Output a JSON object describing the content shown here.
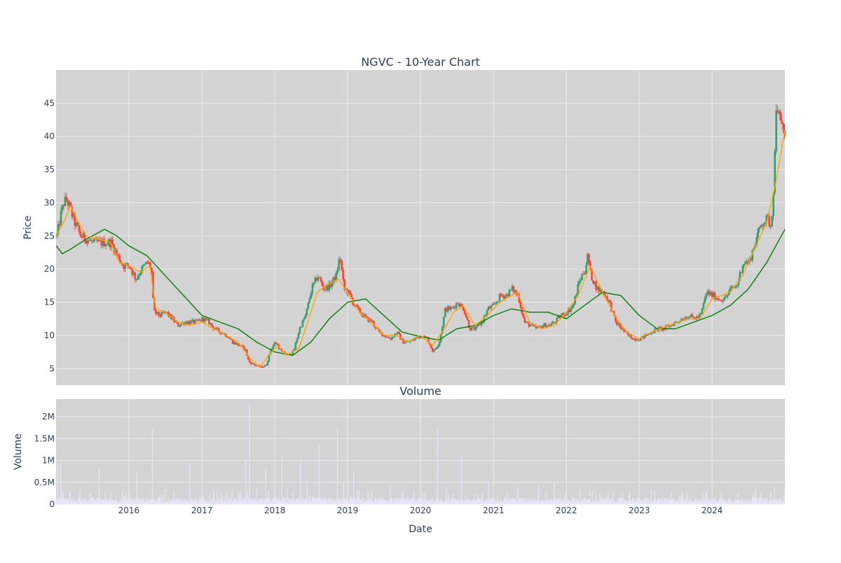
{
  "chart_data": [
    {
      "type": "candlestick",
      "title": "NGVC - 10-Year Chart",
      "ylabel": "Price",
      "xlim": [
        "2015-01-01",
        "2024-12-31"
      ],
      "ylim": [
        2.5,
        50
      ],
      "yticks": [
        5,
        10,
        15,
        20,
        25,
        30,
        35,
        40,
        45
      ],
      "grid": true,
      "colors": {
        "increasing": "#3d9970",
        "decreasing": "#ff4136",
        "sma50": "#ffa500",
        "sma200": "#008000",
        "plot_bg": "#d3d3d3",
        "grid": "#ececec"
      },
      "price_path": [
        [
          "2015-01-02",
          25
        ],
        [
          "2015-01-20",
          28
        ],
        [
          "2015-02-05",
          30
        ],
        [
          "2015-02-20",
          30.5
        ],
        [
          "2015-03-10",
          29
        ],
        [
          "2015-04-01",
          27
        ],
        [
          "2015-05-01",
          25
        ],
        [
          "2015-06-01",
          24.5
        ],
        [
          "2015-07-01",
          24
        ],
        [
          "2015-08-01",
          24
        ],
        [
          "2015-09-01",
          24
        ],
        [
          "2015-10-01",
          24
        ],
        [
          "2015-11-01",
          22
        ],
        [
          "2015-12-01",
          20.5
        ],
        [
          "2016-01-01",
          20.5
        ],
        [
          "2016-02-01",
          18.5
        ],
        [
          "2016-03-01",
          20
        ],
        [
          "2016-04-01",
          21
        ],
        [
          "2016-04-20",
          20
        ],
        [
          "2016-05-01",
          13.5
        ],
        [
          "2016-06-01",
          13
        ],
        [
          "2016-07-01",
          13.5
        ],
        [
          "2016-08-01",
          12.5
        ],
        [
          "2016-09-01",
          11.5
        ],
        [
          "2016-10-01",
          12
        ],
        [
          "2016-11-01",
          12
        ],
        [
          "2016-12-01",
          12
        ],
        [
          "2017-01-01",
          12.5
        ],
        [
          "2017-02-01",
          12
        ],
        [
          "2017-03-01",
          11
        ],
        [
          "2017-04-01",
          10.5
        ],
        [
          "2017-05-01",
          10
        ],
        [
          "2017-06-01",
          9
        ],
        [
          "2017-07-01",
          8.5
        ],
        [
          "2017-08-01",
          8
        ],
        [
          "2017-08-20",
          6
        ],
        [
          "2017-09-20",
          5.5
        ],
        [
          "2017-10-20",
          5.2
        ],
        [
          "2017-11-15",
          5.5
        ],
        [
          "2017-12-10",
          8
        ],
        [
          "2018-01-01",
          9
        ],
        [
          "2018-02-01",
          7.5
        ],
        [
          "2018-03-01",
          7
        ],
        [
          "2018-04-01",
          7.5
        ],
        [
          "2018-05-01",
          11
        ],
        [
          "2018-06-01",
          13
        ],
        [
          "2018-07-01",
          17
        ],
        [
          "2018-08-01",
          19
        ],
        [
          "2018-09-01",
          17
        ],
        [
          "2018-10-01",
          17.5
        ],
        [
          "2018-11-01",
          19
        ],
        [
          "2018-11-20",
          22
        ],
        [
          "2018-12-10",
          17
        ],
        [
          "2019-01-01",
          16.5
        ],
        [
          "2019-02-01",
          14.5
        ],
        [
          "2019-03-01",
          13.5
        ],
        [
          "2019-04-01",
          12.5
        ],
        [
          "2019-05-01",
          12
        ],
        [
          "2019-06-01",
          10.5
        ],
        [
          "2019-07-01",
          10
        ],
        [
          "2019-08-01",
          9.5
        ],
        [
          "2019-09-01",
          10.5
        ],
        [
          "2019-10-01",
          9
        ],
        [
          "2019-11-01",
          9
        ],
        [
          "2019-12-01",
          9.5
        ],
        [
          "2020-01-01",
          10
        ],
        [
          "2020-02-01",
          9.5
        ],
        [
          "2020-03-01",
          7.5
        ],
        [
          "2020-04-01",
          9
        ],
        [
          "2020-05-01",
          14
        ],
        [
          "2020-06-01",
          14
        ],
        [
          "2020-07-01",
          15
        ],
        [
          "2020-08-01",
          14
        ],
        [
          "2020-09-01",
          11
        ],
        [
          "2020-10-01",
          11
        ],
        [
          "2020-11-01",
          12
        ],
        [
          "2020-12-01",
          14
        ],
        [
          "2021-01-01",
          14.5
        ],
        [
          "2021-02-01",
          16
        ],
        [
          "2021-03-01",
          16
        ],
        [
          "2021-04-01",
          17
        ],
        [
          "2021-05-01",
          16
        ],
        [
          "2021-06-01",
          12
        ],
        [
          "2021-07-01",
          11.5
        ],
        [
          "2021-08-01",
          11
        ],
        [
          "2021-09-01",
          11.5
        ],
        [
          "2021-10-01",
          11.5
        ],
        [
          "2021-11-01",
          12
        ],
        [
          "2021-12-01",
          13
        ],
        [
          "2022-01-01",
          13.5
        ],
        [
          "2022-02-01",
          14.5
        ],
        [
          "2022-03-01",
          18
        ],
        [
          "2022-04-01",
          20
        ],
        [
          "2022-04-15",
          22
        ],
        [
          "2022-05-01",
          19
        ],
        [
          "2022-06-01",
          17
        ],
        [
          "2022-07-01",
          16.5
        ],
        [
          "2022-08-01",
          15
        ],
        [
          "2022-09-01",
          12
        ],
        [
          "2022-10-01",
          11
        ],
        [
          "2022-11-01",
          10
        ],
        [
          "2022-12-01",
          9.5
        ],
        [
          "2023-01-01",
          9.5
        ],
        [
          "2023-02-01",
          10
        ],
        [
          "2023-03-01",
          10.5
        ],
        [
          "2023-04-01",
          11
        ],
        [
          "2023-05-01",
          11
        ],
        [
          "2023-06-01",
          11.5
        ],
        [
          "2023-07-01",
          12
        ],
        [
          "2023-08-01",
          12.5
        ],
        [
          "2023-09-01",
          13
        ],
        [
          "2023-10-01",
          12.5
        ],
        [
          "2023-11-01",
          13
        ],
        [
          "2023-12-01",
          16.5
        ],
        [
          "2024-01-01",
          16
        ],
        [
          "2024-02-01",
          15.5
        ],
        [
          "2024-03-01",
          15.5
        ],
        [
          "2024-04-01",
          17
        ],
        [
          "2024-05-01",
          17.5
        ],
        [
          "2024-06-01",
          21
        ],
        [
          "2024-07-01",
          21
        ],
        [
          "2024-08-01",
          24
        ],
        [
          "2024-09-01",
          27
        ],
        [
          "2024-10-01",
          27.5
        ],
        [
          "2024-10-20",
          26.5
        ],
        [
          "2024-11-05",
          35
        ],
        [
          "2024-11-15",
          46
        ],
        [
          "2024-12-01",
          42
        ],
        [
          "2024-12-31",
          40
        ]
      ],
      "sma50": [
        [
          "2015-01-02",
          25
        ],
        [
          "2015-02-15",
          27.5
        ],
        [
          "2015-03-15",
          29.5
        ],
        [
          "2015-04-15",
          27.5
        ],
        [
          "2015-06-01",
          25
        ],
        [
          "2015-08-01",
          24.5
        ],
        [
          "2015-10-01",
          24
        ],
        [
          "2015-11-15",
          21
        ],
        [
          "2016-01-01",
          20.5
        ],
        [
          "2016-03-01",
          19.5
        ],
        [
          "2016-04-15",
          20.5
        ],
        [
          "2016-05-15",
          14
        ],
        [
          "2016-07-01",
          13.5
        ],
        [
          "2016-09-01",
          12
        ],
        [
          "2016-11-01",
          11.5
        ],
        [
          "2017-01-01",
          12
        ],
        [
          "2017-03-01",
          11
        ],
        [
          "2017-05-01",
          10
        ],
        [
          "2017-07-01",
          9
        ],
        [
          "2017-09-01",
          6.5
        ],
        [
          "2017-10-20",
          5.2
        ],
        [
          "2017-12-01",
          7
        ],
        [
          "2018-01-15",
          8.5
        ],
        [
          "2018-03-01",
          7
        ],
        [
          "2018-05-01",
          8
        ],
        [
          "2018-06-15",
          12
        ],
        [
          "2018-08-01",
          16.5
        ],
        [
          "2018-09-15",
          17.5
        ],
        [
          "2018-11-15",
          18.5
        ],
        [
          "2019-01-01",
          16.5
        ],
        [
          "2019-03-01",
          13.5
        ],
        [
          "2019-05-01",
          12
        ],
        [
          "2019-07-01",
          10
        ],
        [
          "2019-09-01",
          10
        ],
        [
          "2019-11-01",
          9
        ],
        [
          "2020-01-01",
          10
        ],
        [
          "2020-03-01",
          8.5
        ],
        [
          "2020-05-01",
          11
        ],
        [
          "2020-06-15",
          13.5
        ],
        [
          "2020-08-01",
          14.5
        ],
        [
          "2020-10-01",
          11.5
        ],
        [
          "2020-12-01",
          13
        ],
        [
          "2021-02-01",
          15
        ],
        [
          "2021-05-01",
          16.5
        ],
        [
          "2021-07-01",
          12
        ],
        [
          "2021-09-01",
          11
        ],
        [
          "2021-11-01",
          11.5
        ],
        [
          "2022-01-01",
          13.5
        ],
        [
          "2022-03-01",
          16
        ],
        [
          "2022-05-01",
          20.5
        ],
        [
          "2022-07-01",
          16.5
        ],
        [
          "2022-09-01",
          13
        ],
        [
          "2022-11-01",
          10.5
        ],
        [
          "2023-01-01",
          9.5
        ],
        [
          "2023-03-01",
          10.5
        ],
        [
          "2023-06-01",
          11.5
        ],
        [
          "2023-09-01",
          12.5
        ],
        [
          "2023-11-01",
          12.5
        ],
        [
          "2024-01-01",
          15.5
        ],
        [
          "2024-04-01",
          16.5
        ],
        [
          "2024-06-01",
          19
        ],
        [
          "2024-08-01",
          23
        ],
        [
          "2024-10-01",
          27
        ],
        [
          "2024-11-15",
          33
        ],
        [
          "2024-12-31",
          41
        ]
      ],
      "sma200": [
        [
          "2015-01-02",
          23.5
        ],
        [
          "2015-02-01",
          22.3
        ],
        [
          "2015-03-15",
          23
        ],
        [
          "2015-06-01",
          24.5
        ],
        [
          "2015-09-01",
          26
        ],
        [
          "2015-11-01",
          25
        ],
        [
          "2016-01-01",
          23.5
        ],
        [
          "2016-04-01",
          22
        ],
        [
          "2016-07-01",
          19
        ],
        [
          "2016-10-01",
          16
        ],
        [
          "2017-01-01",
          13
        ],
        [
          "2017-04-01",
          12
        ],
        [
          "2017-07-01",
          11
        ],
        [
          "2017-10-01",
          9
        ],
        [
          "2018-01-01",
          7.5
        ],
        [
          "2018-04-01",
          7
        ],
        [
          "2018-07-01",
          9
        ],
        [
          "2018-10-01",
          12.5
        ],
        [
          "2019-01-01",
          15
        ],
        [
          "2019-04-01",
          15.5
        ],
        [
          "2019-07-01",
          13
        ],
        [
          "2019-10-01",
          10.5
        ],
        [
          "2020-01-01",
          9.8
        ],
        [
          "2020-04-01",
          9.3
        ],
        [
          "2020-07-01",
          11
        ],
        [
          "2020-10-01",
          11.5
        ],
        [
          "2021-01-01",
          13
        ],
        [
          "2021-04-01",
          14
        ],
        [
          "2021-07-01",
          13.5
        ],
        [
          "2021-10-01",
          13.5
        ],
        [
          "2022-01-01",
          12.5
        ],
        [
          "2022-04-01",
          14.5
        ],
        [
          "2022-07-01",
          16.5
        ],
        [
          "2022-10-01",
          16
        ],
        [
          "2023-01-01",
          13
        ],
        [
          "2023-04-01",
          11
        ],
        [
          "2023-07-01",
          11
        ],
        [
          "2023-10-01",
          12
        ],
        [
          "2024-01-01",
          13
        ],
        [
          "2024-04-01",
          14.5
        ],
        [
          "2024-07-01",
          17
        ],
        [
          "2024-10-01",
          21
        ],
        [
          "2024-12-31",
          26
        ]
      ]
    },
    {
      "type": "bar",
      "title": "Volume",
      "xlabel": "Date",
      "ylabel": "Volume",
      "ylim": [
        0,
        2400000
      ],
      "yticks": [
        0,
        500000,
        1000000,
        1500000,
        2000000
      ],
      "ytick_labels": [
        "0",
        "0.5M",
        "1M",
        "1.5M",
        "2M"
      ],
      "xticks": [
        "2016",
        "2017",
        "2018",
        "2019",
        "2020",
        "2021",
        "2022",
        "2023",
        "2024"
      ],
      "xtick_dates": [
        "2016-01-01",
        "2017-01-01",
        "2018-01-01",
        "2019-01-01",
        "2020-01-01",
        "2021-01-01",
        "2022-01-01",
        "2023-01-01",
        "2024-01-01"
      ],
      "grid": true,
      "bar_color": "#e6e6fa",
      "baseline_volume": 110000,
      "spikes": [
        [
          "2015-01-10",
          900000
        ],
        [
          "2015-01-25",
          950000
        ],
        [
          "2015-05-01",
          320000
        ],
        [
          "2015-08-05",
          820000
        ],
        [
          "2015-10-01",
          300000
        ],
        [
          "2015-12-15",
          280000
        ],
        [
          "2016-02-10",
          740000
        ],
        [
          "2016-04-28",
          1700000
        ],
        [
          "2016-07-01",
          350000
        ],
        [
          "2016-11-01",
          920000
        ],
        [
          "2017-03-01",
          360000
        ],
        [
          "2017-05-05",
          300000
        ],
        [
          "2017-06-01",
          330000
        ],
        [
          "2017-08-10",
          1000000
        ],
        [
          "2017-08-28",
          2300000
        ],
        [
          "2017-10-01",
          350000
        ],
        [
          "2017-11-15",
          860000
        ],
        [
          "2018-01-01",
          420000
        ],
        [
          "2018-02-05",
          1100000
        ],
        [
          "2018-05-10",
          1050000
        ],
        [
          "2018-06-10",
          560000
        ],
        [
          "2018-08-10",
          1380000
        ],
        [
          "2018-11-10",
          1720000
        ],
        [
          "2018-12-10",
          500000
        ],
        [
          "2019-02-01",
          750000
        ],
        [
          "2019-05-01",
          300000
        ],
        [
          "2019-08-01",
          430000
        ],
        [
          "2019-12-01",
          300000
        ],
        [
          "2020-03-25",
          1720000
        ],
        [
          "2020-05-10",
          400000
        ],
        [
          "2020-07-25",
          1130000
        ],
        [
          "2020-12-05",
          520000
        ],
        [
          "2021-05-01",
          380000
        ],
        [
          "2021-08-15",
          420000
        ],
        [
          "2021-11-01",
          480000
        ],
        [
          "2022-03-10",
          340000
        ],
        [
          "2022-05-01",
          330000
        ],
        [
          "2023-03-01",
          330000
        ],
        [
          "2023-06-10",
          300000
        ],
        [
          "2023-12-01",
          280000
        ],
        [
          "2024-02-15",
          250000
        ],
        [
          "2024-05-10",
          270000
        ],
        [
          "2024-08-05",
          410000
        ],
        [
          "2024-11-10",
          380000
        ]
      ]
    }
  ]
}
